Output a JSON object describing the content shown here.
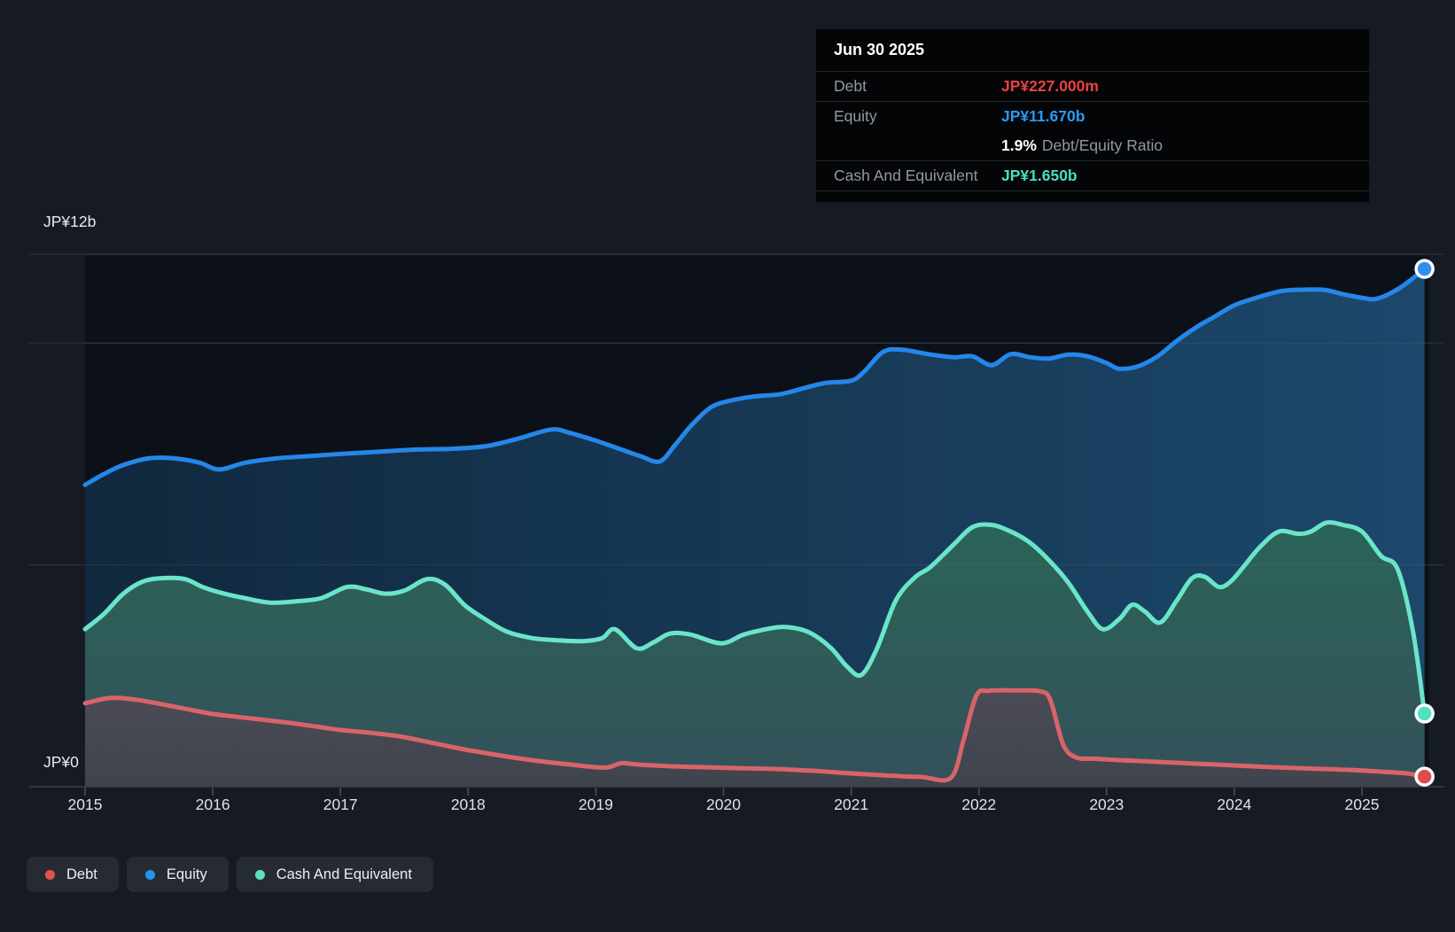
{
  "tooltip": {
    "date": "Jun 30 2025",
    "debt_label": "Debt",
    "debt_value": "JP¥227.000m",
    "equity_label": "Equity",
    "equity_value": "JP¥11.670b",
    "ratio_pct": "1.9%",
    "ratio_label": "Debt/Equity Ratio",
    "cash_label": "Cash And Equivalent",
    "cash_value": "JP¥1.650b"
  },
  "y_axis": {
    "top_label": "JP¥12b",
    "zero_label": "JP¥0"
  },
  "legend": {
    "items": [
      {
        "label": "Debt",
        "color": "#e45252"
      },
      {
        "label": "Equity",
        "color": "#2196f3"
      },
      {
        "label": "Cash And Equivalent",
        "color": "#5ee0c6"
      }
    ]
  },
  "colors": {
    "page_bg": "#161b23",
    "plot_bg": "#0c1119",
    "gridline": "#2b323d",
    "axis_line": "#3a414b",
    "tick": "#4a515a",
    "tooltip_bg": "#040507",
    "marker_ring": "#ffffff"
  },
  "chart_data": {
    "type": "area",
    "x_unit": "year",
    "y_unit": "JP¥ billions",
    "x_range": [
      2015.0,
      2025.49
    ],
    "ylim": [
      0,
      12
    ],
    "x_ticks": [
      2015,
      2016,
      2017,
      2018,
      2019,
      2020,
      2021,
      2022,
      2023,
      2024,
      2025
    ],
    "x_tick_labels": [
      "2015",
      "2016",
      "2017",
      "2018",
      "2019",
      "2020",
      "2021",
      "2022",
      "2023",
      "2024",
      "2025"
    ],
    "y_gridline_values": [
      12,
      10,
      5
    ],
    "legend_position": "bottom-left",
    "grid": "horizontal-only",
    "series": [
      {
        "name": "Equity",
        "color": "#2487e9",
        "marker_fill": "#2f8fee",
        "fill_direction": "horizontal",
        "fill_from": "#112a40",
        "fill_to": "#1d4b70",
        "fill_opacity": 0.94,
        "points": [
          [
            2015.0,
            6.8
          ],
          [
            2015.15,
            7.05
          ],
          [
            2015.3,
            7.25
          ],
          [
            2015.5,
            7.4
          ],
          [
            2015.7,
            7.4
          ],
          [
            2015.9,
            7.3
          ],
          [
            2016.05,
            7.15
          ],
          [
            2016.25,
            7.3
          ],
          [
            2016.5,
            7.4
          ],
          [
            2016.75,
            7.45
          ],
          [
            2017.0,
            7.5
          ],
          [
            2017.3,
            7.55
          ],
          [
            2017.6,
            7.6
          ],
          [
            2017.9,
            7.62
          ],
          [
            2018.15,
            7.68
          ],
          [
            2018.4,
            7.85
          ],
          [
            2018.65,
            8.05
          ],
          [
            2018.8,
            7.97
          ],
          [
            2019.0,
            7.8
          ],
          [
            2019.2,
            7.6
          ],
          [
            2019.35,
            7.45
          ],
          [
            2019.5,
            7.33
          ],
          [
            2019.62,
            7.7
          ],
          [
            2019.75,
            8.15
          ],
          [
            2019.9,
            8.55
          ],
          [
            2020.05,
            8.7
          ],
          [
            2020.25,
            8.8
          ],
          [
            2020.45,
            8.85
          ],
          [
            2020.65,
            9.0
          ],
          [
            2020.8,
            9.1
          ],
          [
            2021.0,
            9.15
          ],
          [
            2021.1,
            9.35
          ],
          [
            2021.25,
            9.8
          ],
          [
            2021.4,
            9.85
          ],
          [
            2021.6,
            9.75
          ],
          [
            2021.8,
            9.68
          ],
          [
            2021.95,
            9.7
          ],
          [
            2022.1,
            9.5
          ],
          [
            2022.25,
            9.75
          ],
          [
            2022.4,
            9.68
          ],
          [
            2022.55,
            9.65
          ],
          [
            2022.7,
            9.74
          ],
          [
            2022.85,
            9.7
          ],
          [
            2023.0,
            9.55
          ],
          [
            2023.1,
            9.42
          ],
          [
            2023.25,
            9.48
          ],
          [
            2023.4,
            9.7
          ],
          [
            2023.55,
            10.05
          ],
          [
            2023.7,
            10.35
          ],
          [
            2023.85,
            10.6
          ],
          [
            2024.0,
            10.85
          ],
          [
            2024.15,
            11.0
          ],
          [
            2024.35,
            11.16
          ],
          [
            2024.5,
            11.2
          ],
          [
            2024.7,
            11.2
          ],
          [
            2024.85,
            11.1
          ],
          [
            2025.0,
            11.02
          ],
          [
            2025.12,
            11.0
          ],
          [
            2025.3,
            11.25
          ],
          [
            2025.49,
            11.67
          ]
        ]
      },
      {
        "name": "Cash And Equivalent",
        "color": "#6be4c9",
        "marker_fill": "#52dfc2",
        "fill_direction": "vertical",
        "fill_from": "#2a6457",
        "fill_to": "#34515b",
        "fill_opacity": 1,
        "points": [
          [
            2015.0,
            3.55
          ],
          [
            2015.15,
            3.9
          ],
          [
            2015.3,
            4.35
          ],
          [
            2015.45,
            4.62
          ],
          [
            2015.6,
            4.7
          ],
          [
            2015.78,
            4.68
          ],
          [
            2015.92,
            4.5
          ],
          [
            2016.05,
            4.38
          ],
          [
            2016.25,
            4.25
          ],
          [
            2016.45,
            4.15
          ],
          [
            2016.65,
            4.18
          ],
          [
            2016.85,
            4.25
          ],
          [
            2017.05,
            4.5
          ],
          [
            2017.2,
            4.45
          ],
          [
            2017.35,
            4.35
          ],
          [
            2017.5,
            4.42
          ],
          [
            2017.68,
            4.68
          ],
          [
            2017.82,
            4.55
          ],
          [
            2017.97,
            4.1
          ],
          [
            2018.12,
            3.8
          ],
          [
            2018.3,
            3.5
          ],
          [
            2018.5,
            3.35
          ],
          [
            2018.7,
            3.3
          ],
          [
            2018.9,
            3.28
          ],
          [
            2019.05,
            3.35
          ],
          [
            2019.15,
            3.55
          ],
          [
            2019.32,
            3.12
          ],
          [
            2019.45,
            3.25
          ],
          [
            2019.58,
            3.45
          ],
          [
            2019.74,
            3.43
          ],
          [
            2019.98,
            3.23
          ],
          [
            2020.15,
            3.42
          ],
          [
            2020.3,
            3.53
          ],
          [
            2020.45,
            3.6
          ],
          [
            2020.6,
            3.55
          ],
          [
            2020.72,
            3.4
          ],
          [
            2020.85,
            3.1
          ],
          [
            2020.97,
            2.7
          ],
          [
            2021.08,
            2.52
          ],
          [
            2021.2,
            3.1
          ],
          [
            2021.35,
            4.2
          ],
          [
            2021.5,
            4.72
          ],
          [
            2021.62,
            4.95
          ],
          [
            2021.8,
            5.45
          ],
          [
            2021.95,
            5.85
          ],
          [
            2022.1,
            5.9
          ],
          [
            2022.25,
            5.75
          ],
          [
            2022.4,
            5.5
          ],
          [
            2022.55,
            5.1
          ],
          [
            2022.7,
            4.6
          ],
          [
            2022.85,
            3.95
          ],
          [
            2022.97,
            3.55
          ],
          [
            2023.1,
            3.78
          ],
          [
            2023.2,
            4.1
          ],
          [
            2023.3,
            3.95
          ],
          [
            2023.42,
            3.7
          ],
          [
            2023.55,
            4.2
          ],
          [
            2023.67,
            4.7
          ],
          [
            2023.77,
            4.73
          ],
          [
            2023.88,
            4.5
          ],
          [
            2023.97,
            4.62
          ],
          [
            2024.07,
            4.95
          ],
          [
            2024.2,
            5.4
          ],
          [
            2024.35,
            5.75
          ],
          [
            2024.5,
            5.7
          ],
          [
            2024.6,
            5.75
          ],
          [
            2024.72,
            5.95
          ],
          [
            2024.85,
            5.9
          ],
          [
            2025.0,
            5.75
          ],
          [
            2025.15,
            5.2
          ],
          [
            2025.28,
            4.9
          ],
          [
            2025.4,
            3.5
          ],
          [
            2025.49,
            1.65
          ]
        ]
      },
      {
        "name": "Debt",
        "color": "#d96468",
        "marker_fill": "#e14b4b",
        "fill_direction": "vertical",
        "fill_from": "#4c4b56",
        "fill_to": "#3e444d",
        "fill_opacity": 1,
        "points": [
          [
            2015.0,
            1.88
          ],
          [
            2015.2,
            2.0
          ],
          [
            2015.4,
            1.96
          ],
          [
            2015.6,
            1.86
          ],
          [
            2015.8,
            1.75
          ],
          [
            2016.0,
            1.64
          ],
          [
            2016.3,
            1.54
          ],
          [
            2016.6,
            1.44
          ],
          [
            2016.8,
            1.36
          ],
          [
            2017.0,
            1.28
          ],
          [
            2017.25,
            1.21
          ],
          [
            2017.45,
            1.14
          ],
          [
            2017.7,
            1.0
          ],
          [
            2017.9,
            0.88
          ],
          [
            2018.05,
            0.8
          ],
          [
            2018.3,
            0.68
          ],
          [
            2018.55,
            0.58
          ],
          [
            2018.8,
            0.5
          ],
          [
            2019.0,
            0.44
          ],
          [
            2019.1,
            0.44
          ],
          [
            2019.2,
            0.53
          ],
          [
            2019.33,
            0.5
          ],
          [
            2019.6,
            0.46
          ],
          [
            2019.85,
            0.44
          ],
          [
            2020.1,
            0.42
          ],
          [
            2020.4,
            0.4
          ],
          [
            2020.7,
            0.36
          ],
          [
            2021.0,
            0.3
          ],
          [
            2021.3,
            0.25
          ],
          [
            2021.55,
            0.22
          ],
          [
            2021.78,
            0.2
          ],
          [
            2021.88,
            1.05
          ],
          [
            2021.98,
            2.05
          ],
          [
            2022.08,
            2.16
          ],
          [
            2022.3,
            2.17
          ],
          [
            2022.48,
            2.15
          ],
          [
            2022.56,
            1.95
          ],
          [
            2022.66,
            0.95
          ],
          [
            2022.76,
            0.66
          ],
          [
            2022.9,
            0.63
          ],
          [
            2023.1,
            0.6
          ],
          [
            2023.4,
            0.56
          ],
          [
            2023.7,
            0.52
          ],
          [
            2024.0,
            0.48
          ],
          [
            2024.3,
            0.44
          ],
          [
            2024.6,
            0.41
          ],
          [
            2024.9,
            0.38
          ],
          [
            2025.15,
            0.34
          ],
          [
            2025.35,
            0.3
          ],
          [
            2025.49,
            0.227
          ]
        ]
      }
    ]
  }
}
